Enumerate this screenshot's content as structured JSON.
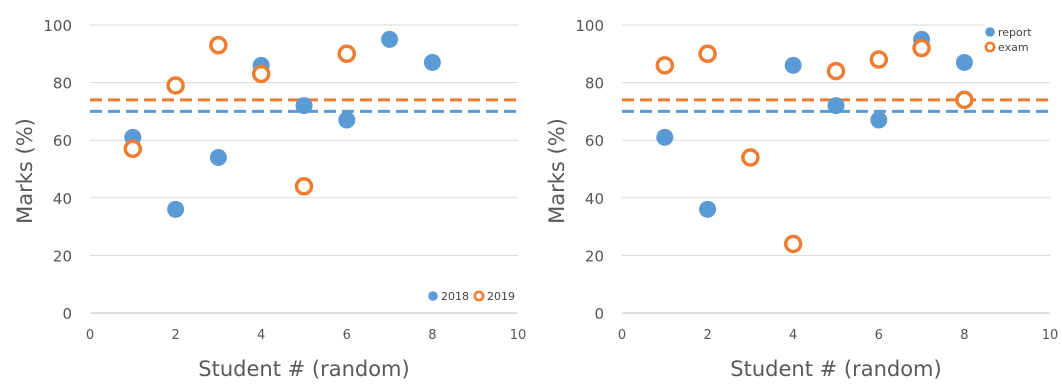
{
  "chart_data": [
    {
      "type": "scatter",
      "xlabel": "Student # (random)",
      "ylabel": "Marks (%)",
      "xlim": [
        0,
        10
      ],
      "ylim": [
        0,
        100
      ],
      "xticks": [
        0,
        2,
        4,
        6,
        8,
        10
      ],
      "yticks": [
        0,
        20,
        40,
        60,
        80,
        100
      ],
      "grid": "horizontal",
      "legend_position": "bottom-right",
      "series": [
        {
          "name": "2018",
          "color": "#5b9bd5",
          "marker": "filled-circle",
          "x": [
            1,
            2,
            3,
            4,
            5,
            6,
            7,
            8
          ],
          "y": [
            61,
            36,
            54,
            86,
            72,
            67,
            95,
            87
          ]
        },
        {
          "name": "2019",
          "color": "#ed7d31",
          "marker": "hollow-circle",
          "x": [
            1,
            2,
            3,
            4,
            5,
            6
          ],
          "y": [
            57,
            79,
            93,
            83,
            44,
            90
          ]
        }
      ],
      "reference_lines": [
        {
          "y": 70,
          "color": "#5b9bd5",
          "style": "dashed"
        },
        {
          "y": 74,
          "color": "#ed7d31",
          "style": "dashed"
        }
      ]
    },
    {
      "type": "scatter",
      "xlabel": "Student # (random)",
      "ylabel": "Marks (%)",
      "xlim": [
        0,
        10
      ],
      "ylim": [
        0,
        100
      ],
      "xticks": [
        0,
        2,
        4,
        6,
        8,
        10
      ],
      "yticks": [
        0,
        20,
        40,
        60,
        80,
        100
      ],
      "grid": "horizontal",
      "legend_position": "top-right",
      "series": [
        {
          "name": "report",
          "color": "#5b9bd5",
          "marker": "filled-circle",
          "x": [
            1,
            2,
            4,
            5,
            6,
            7,
            8
          ],
          "y": [
            61,
            36,
            86,
            72,
            67,
            95,
            87
          ]
        },
        {
          "name": "exam",
          "color": "#ed7d31",
          "marker": "hollow-circle",
          "x": [
            1,
            2,
            3,
            4,
            5,
            6,
            7,
            8
          ],
          "y": [
            86,
            90,
            54,
            24,
            84,
            88,
            92,
            74
          ]
        }
      ],
      "reference_lines": [
        {
          "y": 70,
          "color": "#5b9bd5",
          "style": "dashed"
        },
        {
          "y": 74,
          "color": "#ed7d31",
          "style": "dashed"
        }
      ]
    }
  ]
}
